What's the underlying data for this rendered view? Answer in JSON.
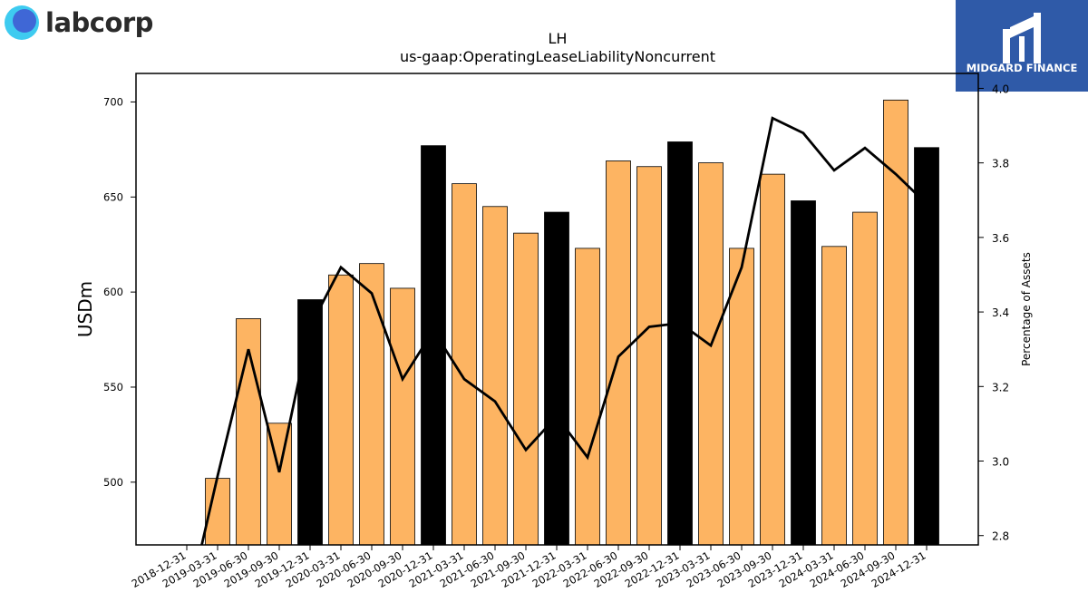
{
  "brand": {
    "left_logo_text": "labcorp",
    "right_logo_text": "MIDGARD FINANCE",
    "right_logo_bg": "#2f5aa8"
  },
  "chart_data": {
    "type": "bar",
    "title": "LH",
    "subtitle": "us-gaap:OperatingLeaseLiabilityNoncurrent",
    "ylabel": "USDm",
    "y2label": "Percentage of Assets",
    "categories": [
      "2018-12-31",
      "2019-03-31",
      "2019-06-30",
      "2019-09-30",
      "2019-12-31",
      "2020-03-31",
      "2020-06-30",
      "2020-09-30",
      "2020-12-31",
      "2021-03-31",
      "2021-06-30",
      "2021-09-30",
      "2021-12-31",
      "2022-03-31",
      "2022-06-30",
      "2022-09-30",
      "2022-12-31",
      "2023-03-31",
      "2023-06-30",
      "2023-09-30",
      "2023-12-31",
      "2024-03-31",
      "2024-06-30",
      "2024-09-30",
      "2024-12-31"
    ],
    "series": [
      {
        "name": "",
        "axis": "left",
        "kind": "bar",
        "values": [
          null,
          502,
          586,
          531,
          596,
          609,
          615,
          602,
          677,
          657,
          645,
          631,
          642,
          623,
          669,
          666,
          679,
          668,
          623,
          662,
          648,
          624,
          642,
          701,
          676
        ]
      },
      {
        "name": "",
        "axis": "right",
        "kind": "line",
        "values": [
          2.6,
          2.96,
          3.3,
          2.97,
          3.36,
          3.52,
          3.45,
          3.22,
          3.35,
          3.22,
          3.16,
          3.03,
          3.12,
          3.01,
          3.28,
          3.36,
          3.37,
          3.31,
          3.52,
          3.92,
          3.88,
          3.78,
          3.84,
          3.77,
          3.69
        ]
      }
    ],
    "year_end_bar_color": "#000000",
    "bar_color": "#fdb462",
    "line_color": "#000000",
    "ylim": [
      467,
      715
    ],
    "y2lim": [
      2.775,
      4.04
    ],
    "yticks": [
      500,
      550,
      600,
      650,
      700
    ],
    "y2ticks": [
      "2.8",
      "3.0",
      "3.2",
      "3.4",
      "3.6",
      "3.8",
      "4.0"
    ],
    "grid": false,
    "legend": "none"
  }
}
